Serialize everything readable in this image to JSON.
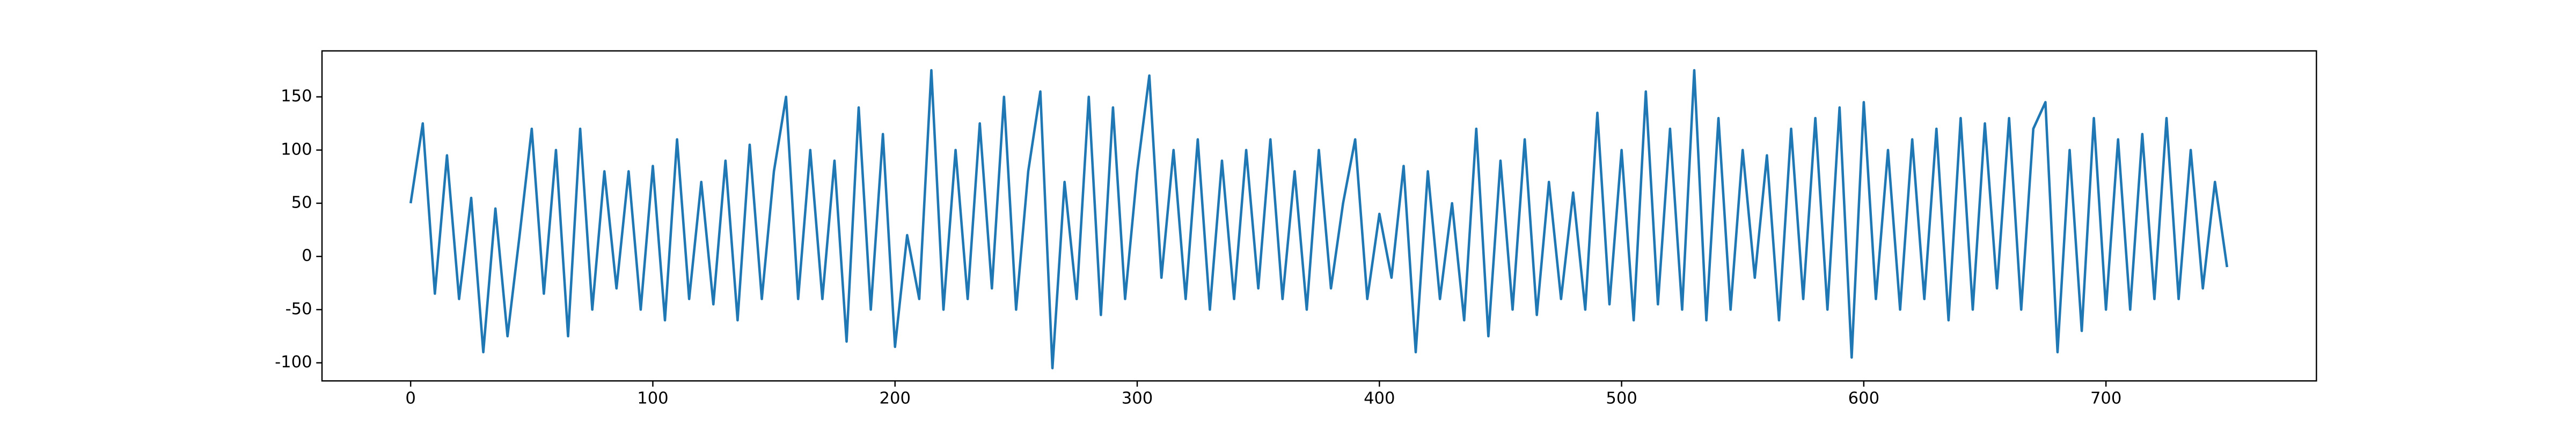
{
  "chart_data": {
    "type": "line",
    "x": [
      0,
      5,
      10,
      15,
      20,
      25,
      30,
      35,
      40,
      45,
      50,
      55,
      60,
      65,
      70,
      75,
      80,
      85,
      90,
      95,
      100,
      105,
      110,
      115,
      120,
      125,
      130,
      135,
      140,
      145,
      150,
      155,
      160,
      165,
      170,
      175,
      180,
      185,
      190,
      195,
      200,
      205,
      210,
      215,
      220,
      225,
      230,
      235,
      240,
      245,
      250,
      255,
      260,
      265,
      270,
      275,
      280,
      285,
      290,
      295,
      300,
      305,
      310,
      315,
      320,
      325,
      330,
      335,
      340,
      345,
      350,
      355,
      360,
      365,
      370,
      375,
      380,
      385,
      390,
      395,
      400,
      405,
      410,
      415,
      420,
      425,
      430,
      435,
      440,
      445,
      450,
      455,
      460,
      465,
      470,
      475,
      480,
      485,
      490,
      495,
      500,
      505,
      510,
      515,
      520,
      525,
      530,
      535,
      540,
      545,
      550,
      555,
      560,
      565,
      570,
      575,
      580,
      585,
      590,
      595,
      600,
      605,
      610,
      615,
      620,
      625,
      630,
      635,
      640,
      645,
      650,
      655,
      660,
      665,
      670,
      675,
      680,
      685,
      690,
      695,
      700,
      705,
      710,
      715,
      720,
      725,
      730,
      735,
      740,
      745,
      750
    ],
    "series": [
      {
        "color": "#1f77b4",
        "values": [
          50,
          125,
          -35,
          95,
          -40,
          55,
          -90,
          45,
          -75,
          20,
          120,
          -35,
          100,
          -75,
          120,
          -50,
          80,
          -30,
          80,
          -50,
          85,
          -60,
          110,
          -40,
          70,
          -45,
          90,
          -60,
          105,
          -40,
          80,
          150,
          -40,
          100,
          -40,
          90,
          -80,
          140,
          -50,
          115,
          -85,
          20,
          -40,
          175,
          -50,
          100,
          -40,
          125,
          -30,
          150,
          -50,
          80,
          155,
          -105,
          70,
          -40,
          150,
          -55,
          140,
          -40,
          80,
          170,
          -20,
          100,
          -40,
          110,
          -50,
          90,
          -40,
          100,
          -30,
          110,
          -40,
          80,
          -50,
          100,
          -30,
          50,
          110,
          -40,
          40,
          -20,
          85,
          -90,
          80,
          -40,
          50,
          -60,
          120,
          -75,
          90,
          -50,
          110,
          -55,
          70,
          -40,
          60,
          -50,
          135,
          -45,
          100,
          -60,
          155,
          -45,
          120,
          -50,
          175,
          -60,
          130,
          -50,
          100,
          -20,
          95,
          -60,
          120,
          -40,
          130,
          -50,
          140,
          -95,
          145,
          -40,
          100,
          -50,
          110,
          -40,
          120,
          -60,
          130,
          -50,
          125,
          -30,
          130,
          -50,
          120,
          145,
          -90,
          100,
          -70,
          130,
          -50,
          110,
          -50,
          115,
          -40,
          130,
          -40,
          100,
          -30,
          70,
          -10
        ]
      }
    ],
    "xlim": [
      -36.6,
      786.9
    ],
    "ylim": [
      -117,
      193.2
    ],
    "xticks": [
      0,
      100,
      200,
      300,
      400,
      500,
      600,
      700
    ],
    "yticks": [
      -100,
      -50,
      0,
      50,
      100,
      150
    ]
  }
}
